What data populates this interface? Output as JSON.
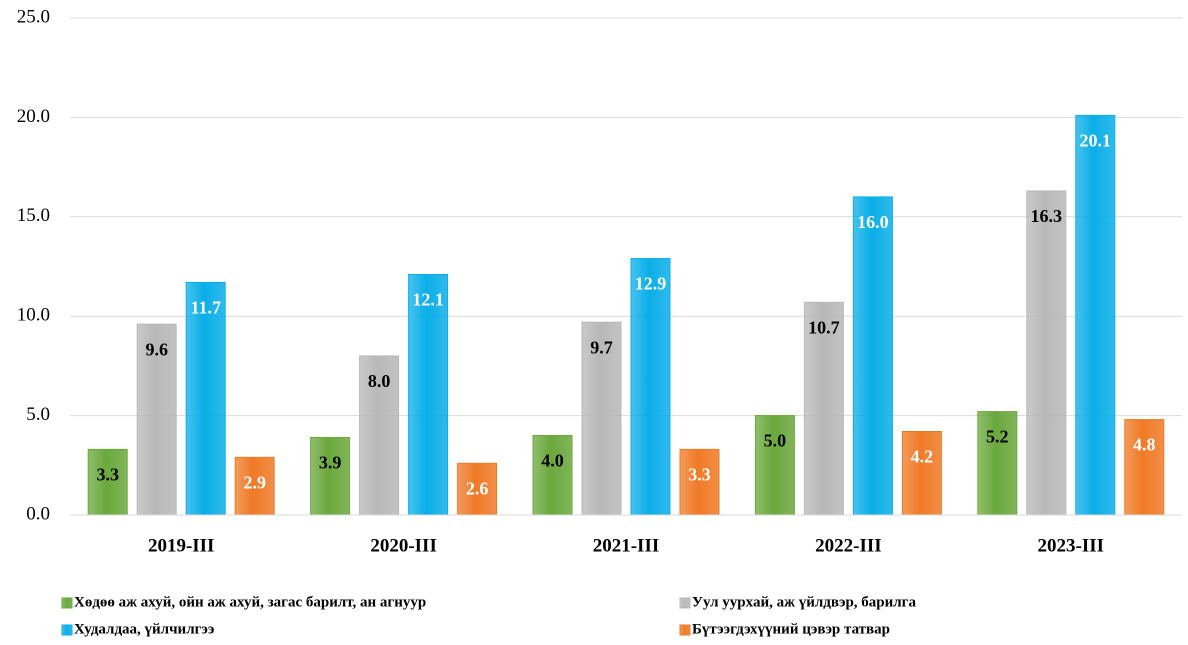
{
  "chart_data": {
    "type": "bar",
    "categories": [
      "2019-III",
      "2020-III",
      "2021-III",
      "2022-III",
      "2023-III"
    ],
    "series": [
      {
        "name": "Хөдөө аж ахуй, ойн аж ахуй, загас барилт, ан агнуур",
        "color": "#6aa83c",
        "label_color": "#000000",
        "values": [
          3.3,
          3.9,
          4.0,
          5.0,
          5.2
        ],
        "value_labels": [
          "3.3",
          "3.9",
          "4.0",
          "5.0",
          "5.2"
        ]
      },
      {
        "name": "Уул уурхай, аж үйлдвэр, барилга",
        "color": "#b8b8b8",
        "label_color": "#000000",
        "values": [
          9.6,
          8.0,
          9.7,
          10.7,
          16.3
        ],
        "value_labels": [
          "9.6",
          "8.0",
          "9.7",
          "10.7",
          "16.3"
        ]
      },
      {
        "name": "Худалдаа, үйлчилгээ",
        "color": "#0aaee8",
        "label_color": "#ffffff",
        "values": [
          11.7,
          12.1,
          12.9,
          16.0,
          20.1
        ],
        "value_labels": [
          "11.7",
          "12.1",
          "12.9",
          "16.0",
          "20.1"
        ]
      },
      {
        "name": "Бүтээгдэхүүний цэвэр татвар",
        "color": "#ef7a26",
        "label_color": "#ffffff",
        "values": [
          2.9,
          2.6,
          3.3,
          4.2,
          4.8
        ],
        "value_labels": [
          "2.9",
          "2.6",
          "3.3",
          "4.2",
          "4.8"
        ]
      }
    ],
    "ylim": [
      0,
      25
    ],
    "yticks": [
      {
        "value": 0,
        "label": "0.0"
      },
      {
        "value": 5,
        "label": "5.0"
      },
      {
        "value": 10,
        "label": "10.0"
      },
      {
        "value": 15,
        "label": "15.0"
      },
      {
        "value": 20,
        "label": "20.0"
      },
      {
        "value": 25,
        "label": "25.0"
      }
    ],
    "grid": true,
    "legend": "bottom"
  }
}
